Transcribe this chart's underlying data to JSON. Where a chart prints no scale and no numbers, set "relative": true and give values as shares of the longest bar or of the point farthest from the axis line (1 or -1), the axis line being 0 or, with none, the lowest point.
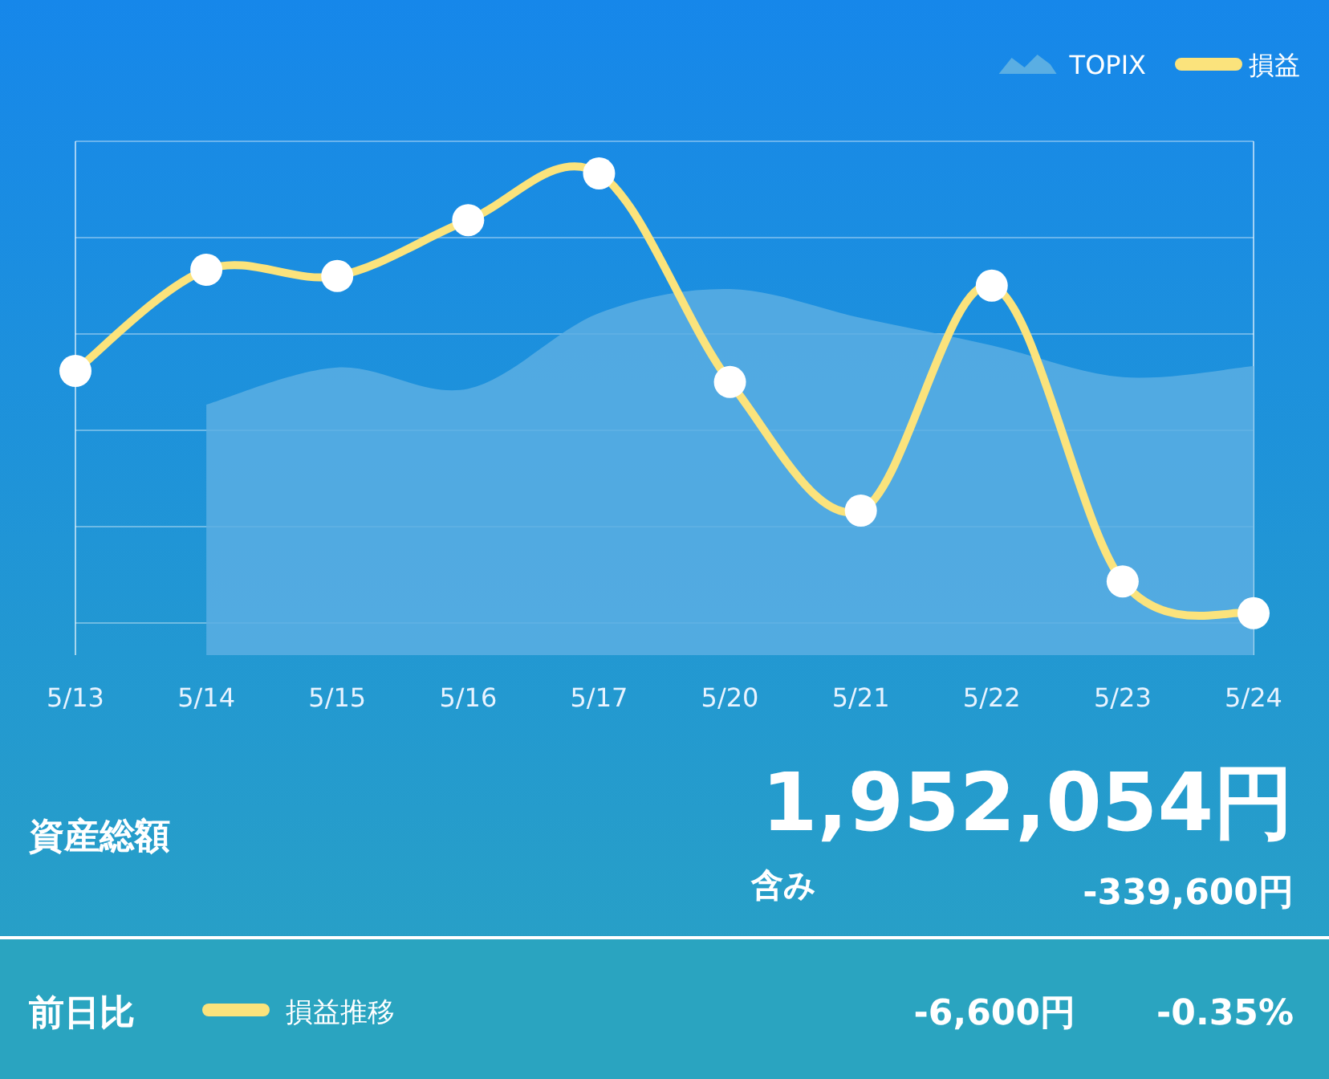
{
  "chart_data": {
    "type": "line",
    "relative": true,
    "grid": true,
    "legend": "top right",
    "categories": [
      "5/13",
      "5/14",
      "5/15",
      "5/16",
      "5/17",
      "5/20",
      "5/21",
      "5/22",
      "5/23",
      "5/24"
    ],
    "series": [
      {
        "name": "TOPIX",
        "type": "area",
        "color": "#5aaee3",
        "values": [
          null,
          0.52,
          0.597,
          0.553,
          0.71,
          0.76,
          0.7,
          0.643,
          0.577,
          0.6
        ]
      },
      {
        "name": "損益",
        "marker": "circle",
        "color": "#fbe37c",
        "values": [
          0.59,
          0.8,
          0.787,
          0.903,
          1,
          0.567,
          0.3,
          0.767,
          0.153,
          0.087
        ]
      }
    ],
    "annotations": [
      "資産総額",
      "1,952,054円",
      "含み",
      "-339,600円",
      "前日比",
      "損益推移",
      "-6,600円",
      "-0.35%"
    ]
  }
}
